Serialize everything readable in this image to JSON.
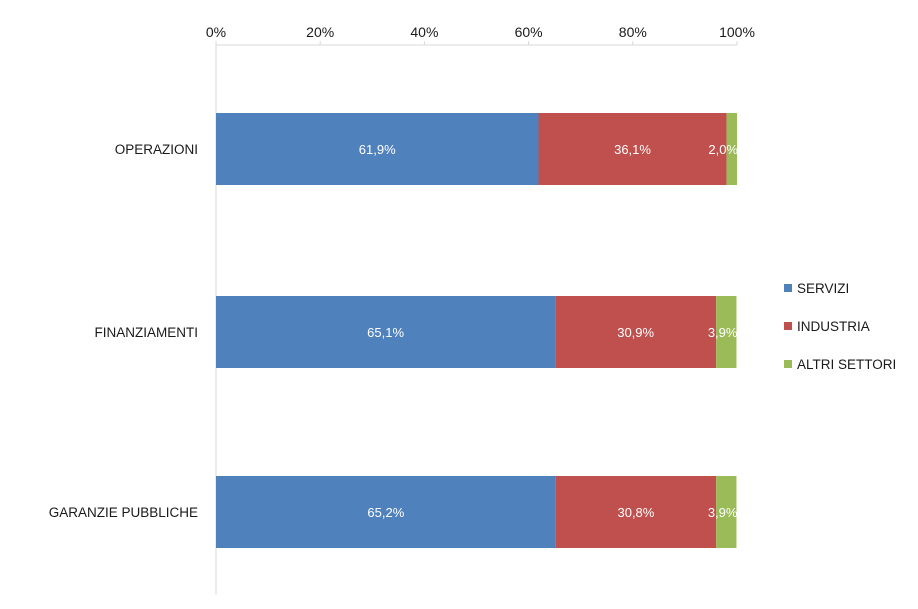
{
  "chart_data": {
    "type": "bar",
    "orientation": "horizontal",
    "stacked": "percent",
    "categories": [
      "OPERAZIONI",
      "FINANZIAMENTI",
      "GARANZIE PUBBLICHE"
    ],
    "series": [
      {
        "name": "SERVIZI",
        "color": "#4f81bd",
        "values": [
          61.9,
          65.1,
          65.2
        ],
        "labels": [
          "61,9%",
          "65,1%",
          "65,2%"
        ]
      },
      {
        "name": "INDUSTRIA",
        "color": "#c0504d",
        "values": [
          36.1,
          30.9,
          30.8
        ],
        "labels": [
          "36,1%",
          "30,9%",
          "30,8%"
        ]
      },
      {
        "name": "ALTRI SETTORI",
        "color": "#9bbb59",
        "values": [
          2.0,
          3.9,
          3.9
        ],
        "labels": [
          "2,0%",
          "3,9%",
          "3,9%"
        ]
      }
    ],
    "xlim": [
      0,
      100
    ],
    "xticks": [
      "0%",
      "20%",
      "40%",
      "60%",
      "80%",
      "100%"
    ],
    "xaxis_position": "top",
    "grid": false,
    "legend": "right"
  }
}
